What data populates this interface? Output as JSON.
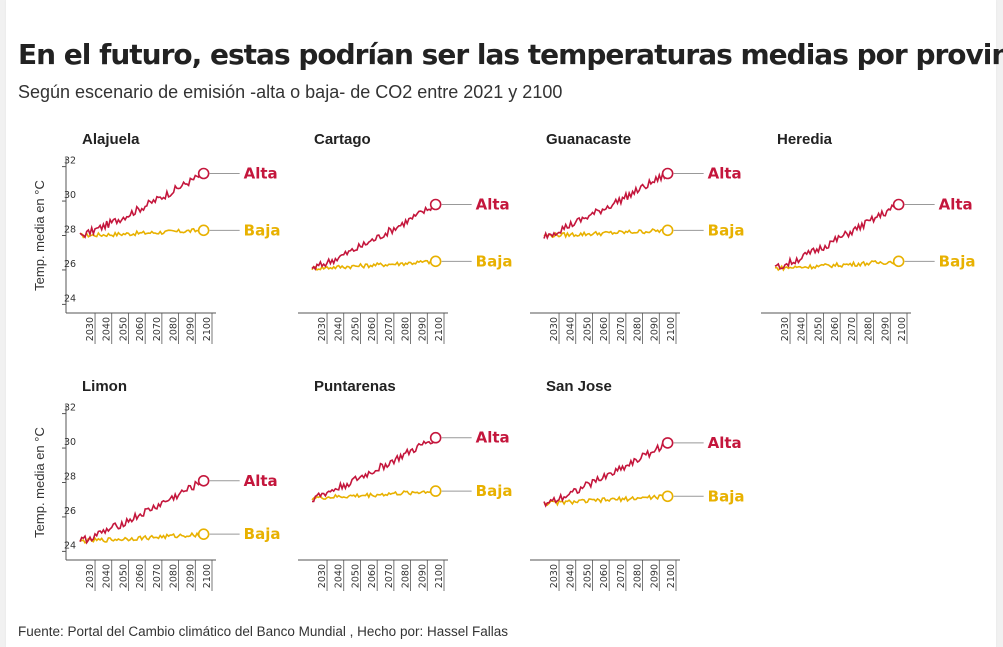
{
  "title": "En el futuro, estas podrían ser las temperaturas medias por provincia",
  "subtitle": "Según escenario de emisión -alta o baja- de CO2 entre 2021 y 2100",
  "source": "Fuente: Portal del Cambio climático del Banco Mundial , Hecho por: Hassel Fallas",
  "colors": {
    "alta": "#c4163c",
    "baja": "#e8b100"
  },
  "chart_data": {
    "type": "line",
    "ylabel": "Temp. media en °C",
    "ylim": [
      23.5,
      32.5
    ],
    "y_ticks": [
      24,
      26,
      28,
      30,
      32
    ],
    "xlim": [
      2021,
      2100
    ],
    "x_ticks": [
      2030,
      2040,
      2050,
      2060,
      2070,
      2080,
      2090,
      2100
    ],
    "series_labels": [
      "Alta",
      "Baja"
    ],
    "panels": [
      {
        "name": "Alajuela",
        "start": 28.0,
        "alta_end": 31.6,
        "baja_end": 28.3
      },
      {
        "name": "Cartago",
        "start": 26.1,
        "alta_end": 29.8,
        "baja_end": 26.5
      },
      {
        "name": "Guanacaste",
        "start": 28.0,
        "alta_end": 31.6,
        "baja_end": 28.3
      },
      {
        "name": "Heredia",
        "start": 26.1,
        "alta_end": 29.8,
        "baja_end": 26.5
      },
      {
        "name": "Limon",
        "start": 24.6,
        "alta_end": 28.1,
        "baja_end": 25.0
      },
      {
        "name": "Puntarenas",
        "start": 27.1,
        "alta_end": 30.6,
        "baja_end": 27.5
      },
      {
        "name": "San Jose",
        "start": 26.8,
        "alta_end": 30.3,
        "baja_end": 27.2
      }
    ]
  }
}
